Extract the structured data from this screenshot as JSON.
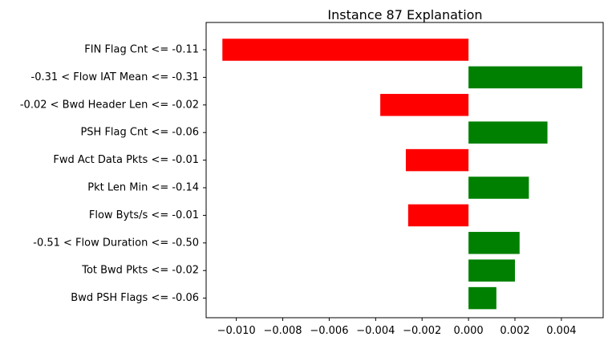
{
  "chart_data": {
    "type": "bar",
    "orientation": "horizontal",
    "title": "Instance 87 Explanation",
    "xlabel": "",
    "ylabel": "",
    "categories": [
      "FIN Flag Cnt <= -0.11",
      "-0.31 < Flow IAT Mean <= -0.31",
      "-0.02 < Bwd Header Len <= -0.02",
      "PSH Flag Cnt <= -0.06",
      "Fwd Act Data Pkts <= -0.01",
      "Pkt Len Min <= -0.14",
      "Flow Byts/s <= -0.01",
      "-0.51 < Flow Duration <= -0.50",
      "Tot Bwd Pkts <= -0.02",
      "Bwd PSH Flags <= -0.06"
    ],
    "values": [
      -0.0106,
      0.0049,
      -0.0038,
      0.0034,
      -0.0027,
      0.0026,
      -0.0026,
      0.0022,
      0.002,
      0.0012
    ],
    "xlim": [
      -0.0113,
      0.0058
    ],
    "xticks": [
      -0.01,
      -0.008,
      -0.006,
      -0.004,
      -0.002,
      0.0,
      0.002,
      0.004
    ],
    "xtick_labels": [
      "−0.010",
      "−0.008",
      "−0.006",
      "−0.004",
      "−0.002",
      "0.000",
      "0.002",
      "0.004"
    ],
    "colors": {
      "positive": "#008000",
      "negative": "#ff0000"
    },
    "grid": false,
    "legend": "none"
  }
}
